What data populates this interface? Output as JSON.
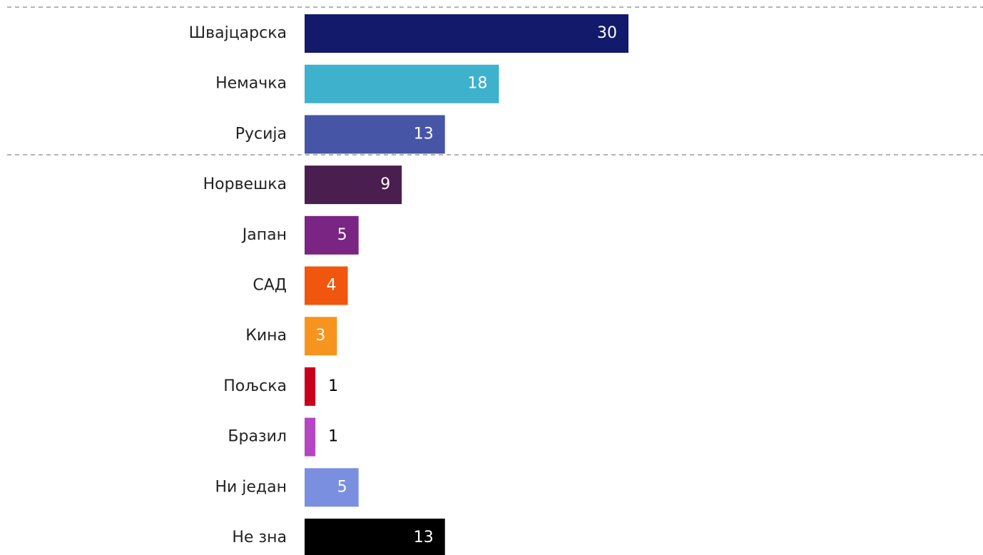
{
  "chart_data": {
    "type": "bar",
    "orientation": "horizontal",
    "categories": [
      "Швајцарска",
      "Немачка",
      "Русија",
      "Норвешка",
      "Јапан",
      "САД",
      "Кина",
      "Пољска",
      "Бразил",
      "Ни један",
      "Не зна"
    ],
    "values": [
      30,
      18,
      13,
      9,
      5,
      4,
      3,
      1,
      1,
      5,
      13
    ],
    "colors": [
      "#131a6b",
      "#3eb1cc",
      "#4655a6",
      "#4a1f4f",
      "#7a2483",
      "#f0560d",
      "#f7941d",
      "#c8001e",
      "#b545c3",
      "#7b8fe0",
      "#000000"
    ]
  }
}
